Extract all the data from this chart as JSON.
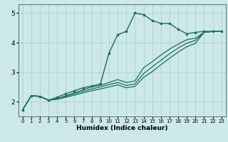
{
  "title": "",
  "xlabel": "Humidex (Indice chaleur)",
  "ylabel": "",
  "bg_color": "#cce8e8",
  "grid_color": "#aacece",
  "line_color": "#1a6e65",
  "xlim": [
    -0.5,
    23.5
  ],
  "ylim": [
    1.5,
    5.3
  ],
  "yticks": [
    2,
    3,
    4,
    5
  ],
  "xticks": [
    0,
    1,
    2,
    3,
    4,
    5,
    6,
    7,
    8,
    9,
    10,
    11,
    12,
    13,
    14,
    15,
    16,
    17,
    18,
    19,
    20,
    21,
    22,
    23
  ],
  "series": [
    {
      "x": [
        0,
        1,
        2,
        3,
        4,
        5,
        6,
        7,
        8,
        9,
        10,
        11,
        12,
        13,
        14,
        15,
        16,
        17,
        18,
        19,
        20,
        21,
        22,
        23
      ],
      "y": [
        1.72,
        2.2,
        2.18,
        2.05,
        2.15,
        2.27,
        2.37,
        2.47,
        2.53,
        2.6,
        3.65,
        4.27,
        4.38,
        5.0,
        4.95,
        4.75,
        4.65,
        4.65,
        4.45,
        4.3,
        4.35,
        4.38,
        4.38,
        4.38
      ],
      "marker": true,
      "lw": 1.0
    },
    {
      "x": [
        0,
        1,
        2,
        3,
        4,
        5,
        6,
        7,
        8,
        9,
        10,
        11,
        12,
        13,
        14,
        15,
        16,
        17,
        18,
        19,
        20,
        21,
        22,
        23
      ],
      "y": [
        1.72,
        2.2,
        2.18,
        2.05,
        2.1,
        2.2,
        2.3,
        2.4,
        2.5,
        2.55,
        2.65,
        2.75,
        2.65,
        2.7,
        3.15,
        3.35,
        3.58,
        3.78,
        3.95,
        4.1,
        4.15,
        4.35,
        4.38,
        4.38
      ],
      "marker": false,
      "lw": 0.9
    },
    {
      "x": [
        0,
        1,
        2,
        3,
        4,
        5,
        6,
        7,
        8,
        9,
        10,
        11,
        12,
        13,
        14,
        15,
        16,
        17,
        18,
        19,
        20,
        21,
        22,
        23
      ],
      "y": [
        1.72,
        2.2,
        2.18,
        2.05,
        2.1,
        2.18,
        2.27,
        2.35,
        2.43,
        2.5,
        2.58,
        2.65,
        2.55,
        2.6,
        2.95,
        3.18,
        3.4,
        3.62,
        3.82,
        3.98,
        4.08,
        4.35,
        4.38,
        4.38
      ],
      "marker": false,
      "lw": 0.9
    },
    {
      "x": [
        0,
        1,
        2,
        3,
        4,
        5,
        6,
        7,
        8,
        9,
        10,
        11,
        12,
        13,
        14,
        15,
        16,
        17,
        18,
        19,
        20,
        21,
        22,
        23
      ],
      "y": [
        1.72,
        2.2,
        2.18,
        2.05,
        2.08,
        2.15,
        2.22,
        2.3,
        2.37,
        2.43,
        2.5,
        2.57,
        2.47,
        2.52,
        2.82,
        3.02,
        3.25,
        3.47,
        3.68,
        3.86,
        3.98,
        4.35,
        4.38,
        4.38
      ],
      "marker": false,
      "lw": 0.9
    }
  ]
}
